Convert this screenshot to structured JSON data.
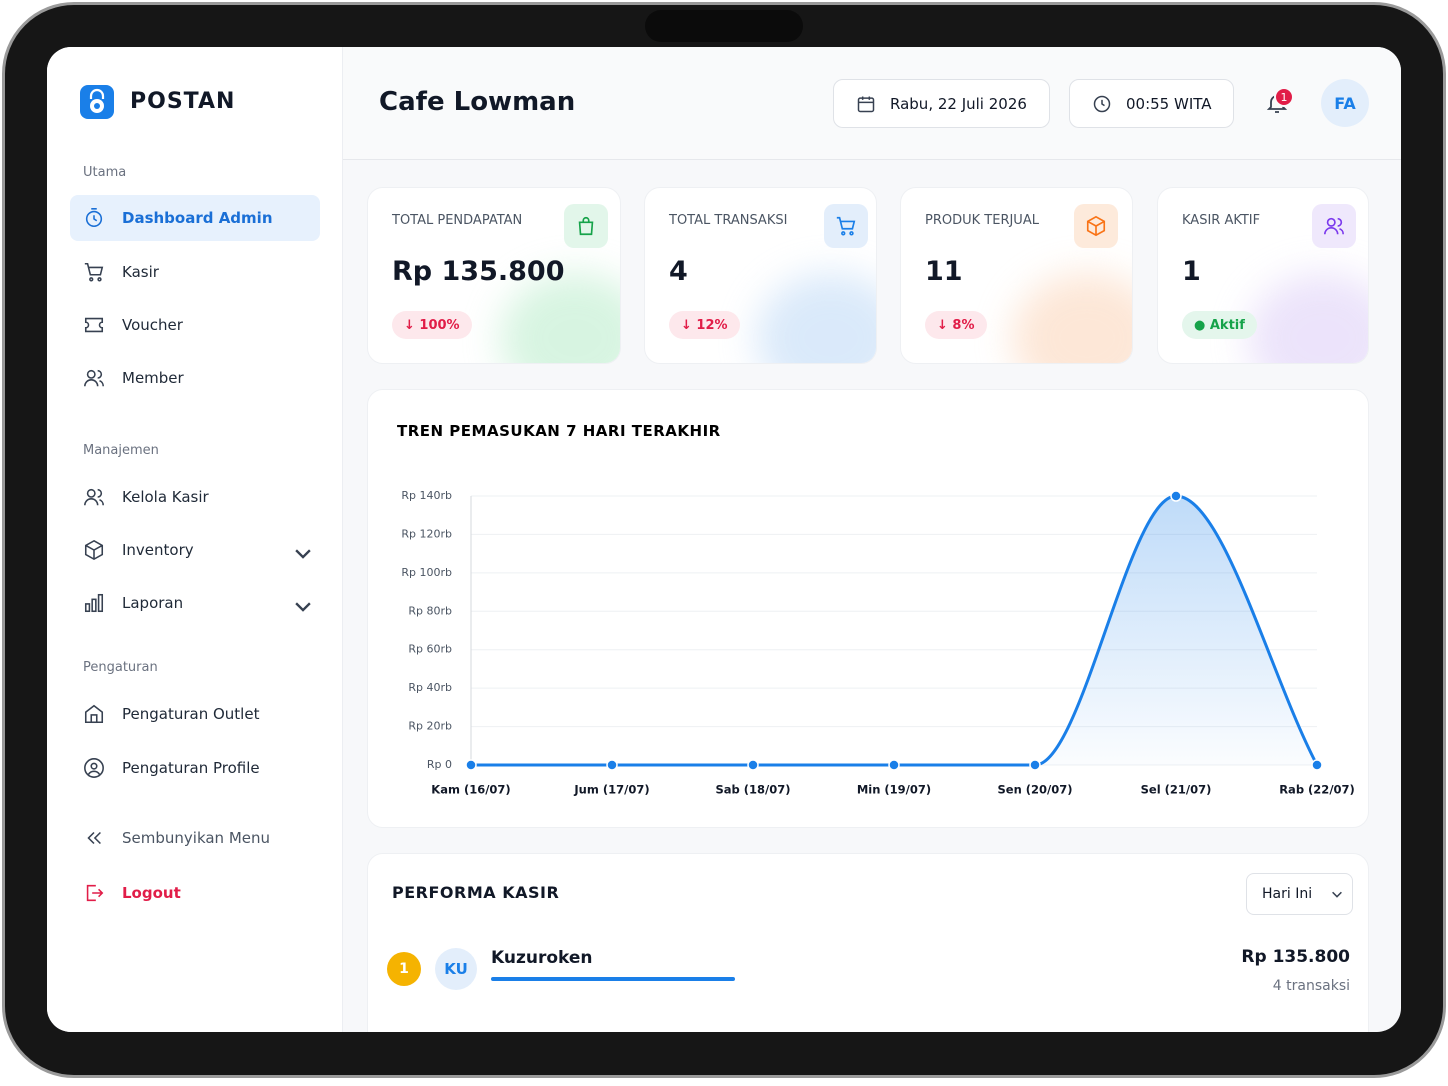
{
  "brand": "POSTAN",
  "sidebar": {
    "sections": [
      {
        "title": "Utama",
        "items": [
          "Dashboard Admin",
          "Kasir",
          "Voucher",
          "Member"
        ]
      },
      {
        "title": "Manajemen",
        "items": [
          "Kelola Kasir",
          "Inventory",
          "Laporan"
        ]
      },
      {
        "title": "Pengaturan",
        "items": [
          "Pengaturan Outlet",
          "Pengaturan Profile"
        ]
      }
    ],
    "hide_menu": "Sembunyikan Menu",
    "logout": "Logout"
  },
  "header": {
    "title": "Cafe Lowman",
    "date": "Rabu, 22 Juli 2026",
    "time": "00:55 WITA",
    "notifications": 1,
    "avatar": "FA"
  },
  "stats": [
    {
      "label": "TOTAL PENDAPATAN",
      "value": "Rp 135.800",
      "change": "100%"
    },
    {
      "label": "TOTAL TRANSAKSI",
      "value": 4,
      "change": "12%"
    },
    {
      "label": "PRODUK TERJUAL",
      "value": 11,
      "change": "8%"
    },
    {
      "label": "KASIR AKTIF",
      "value": 1,
      "status": "Aktif"
    }
  ],
  "chart_data": {
    "type": "line",
    "title": "TREN PEMASUKAN 7 HARI TERAKHIR",
    "categories": [
      "Kam (16/07)",
      "Jum (17/07)",
      "Sab (18/07)",
      "Min (19/07)",
      "Sen (20/07)",
      "Sel (21/07)",
      "Rab (22/07)"
    ],
    "series": [
      {
        "color": "#1a7fe8",
        "values": [
          0,
          0,
          0,
          0,
          0,
          140000,
          0
        ]
      }
    ],
    "ylim": [
      0,
      140000
    ],
    "yticks": [
      {
        "value": 0,
        "label": "Rp 0"
      },
      {
        "value": 20000,
        "label": "Rp 20rb"
      },
      {
        "value": 40000,
        "label": "Rp 40rb"
      },
      {
        "value": 60000,
        "label": "Rp 60rb"
      },
      {
        "value": 80000,
        "label": "Rp 80rb"
      },
      {
        "value": 100000,
        "label": "Rp 100rb"
      },
      {
        "value": 120000,
        "label": "Rp 120rb"
      },
      {
        "value": 140000,
        "label": "Rp 140rb"
      }
    ],
    "grid": true
  },
  "kasir": {
    "title": "PERFORMA KASIR",
    "filter": "Hari Ini",
    "rows": [
      {
        "rank": 1,
        "initials": "KU",
        "name": "Kuzuroken",
        "revenue": "Rp 135.800",
        "transactions": "4 transaksi"
      }
    ]
  }
}
